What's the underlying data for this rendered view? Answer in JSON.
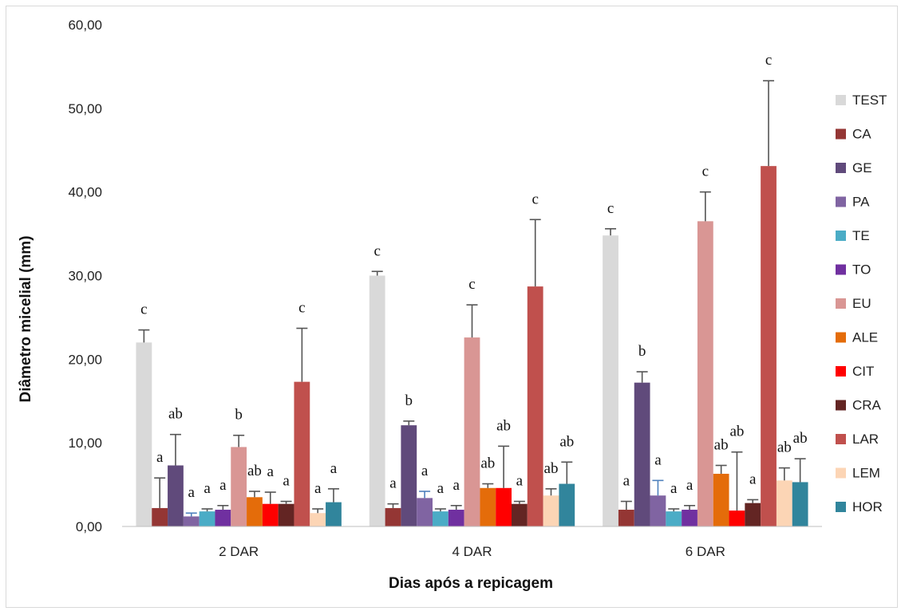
{
  "chart_data": {
    "type": "bar",
    "xlabel": "Dias após a repicagem",
    "ylabel": "Diâmetro micelial (mm)",
    "ylim": [
      0,
      60
    ],
    "yticks": [
      "0,00",
      "10,00",
      "20,00",
      "30,00",
      "40,00",
      "50,00",
      "60,00"
    ],
    "grid": false,
    "legend_position": "right",
    "categories": [
      "2 DAR",
      "4 DAR",
      "6 DAR"
    ],
    "series": [
      {
        "name": "TEST",
        "color": "#d9d9d9",
        "values": [
          22.0,
          30.0,
          34.8
        ],
        "errors": [
          1.5,
          0.5,
          0.8
        ],
        "letters": [
          "c",
          "c",
          "c"
        ]
      },
      {
        "name": "CA",
        "color": "#943634",
        "values": [
          2.2,
          2.2,
          2.0
        ],
        "errors": [
          3.6,
          0.5,
          1.0
        ],
        "letters": [
          "a",
          "a",
          "a"
        ]
      },
      {
        "name": "GE",
        "color": "#604a7b",
        "values": [
          7.3,
          12.1,
          17.2
        ],
        "errors": [
          3.7,
          0.5,
          1.3
        ],
        "letters": [
          "ab",
          "b",
          "b"
        ]
      },
      {
        "name": "PA",
        "color": "#8064a2",
        "values": [
          1.2,
          3.4,
          3.7
        ],
        "errors": [
          0.4,
          0.8,
          1.8
        ],
        "letters": [
          "a",
          "a",
          "a"
        ]
      },
      {
        "name": "TE",
        "color": "#4bacc6",
        "values": [
          1.8,
          1.8,
          1.8
        ],
        "errors": [
          0.3,
          0.3,
          0.3
        ],
        "letters": [
          "a",
          "a",
          "a"
        ]
      },
      {
        "name": "TO",
        "color": "#7030a0",
        "values": [
          2.0,
          2.0,
          2.0
        ],
        "errors": [
          0.5,
          0.5,
          0.5
        ],
        "letters": [
          "a",
          "a",
          "a"
        ]
      },
      {
        "name": "EU",
        "color": "#d99694",
        "values": [
          9.5,
          22.6,
          36.5
        ],
        "errors": [
          1.4,
          3.9,
          3.5
        ],
        "letters": [
          "b",
          "c",
          "c"
        ]
      },
      {
        "name": "ALE",
        "color": "#e46c0a",
        "values": [
          3.5,
          4.6,
          6.3
        ],
        "errors": [
          0.7,
          0.5,
          1.0
        ],
        "letters": [
          "ab",
          "ab",
          "ab"
        ]
      },
      {
        "name": "CIT",
        "color": "#ff0000",
        "values": [
          2.7,
          4.6,
          1.9
        ],
        "errors": [
          1.4,
          5.0,
          7.0
        ],
        "letters": [
          "a",
          "ab",
          "ab"
        ]
      },
      {
        "name": "CRA",
        "color": "#632523",
        "values": [
          2.7,
          2.7,
          2.8
        ],
        "errors": [
          0.3,
          0.3,
          0.4
        ],
        "letters": [
          "a",
          "a",
          "a"
        ]
      },
      {
        "name": "LAR",
        "color": "#c0504d",
        "values": [
          17.3,
          28.7,
          43.1
        ],
        "errors": [
          6.4,
          8.0,
          10.2
        ],
        "letters": [
          "c",
          "c",
          "c"
        ]
      },
      {
        "name": "LEM",
        "color": "#fcd5b5",
        "values": [
          1.6,
          3.7,
          5.5
        ],
        "errors": [
          0.5,
          0.8,
          1.5
        ],
        "letters": [
          "a",
          "ab",
          "ab"
        ]
      },
      {
        "name": "HOR",
        "color": "#31859c",
        "values": [
          2.9,
          5.1,
          5.3
        ],
        "errors": [
          1.6,
          2.6,
          2.8
        ],
        "letters": [
          "a",
          "ab",
          "ab"
        ]
      }
    ]
  }
}
